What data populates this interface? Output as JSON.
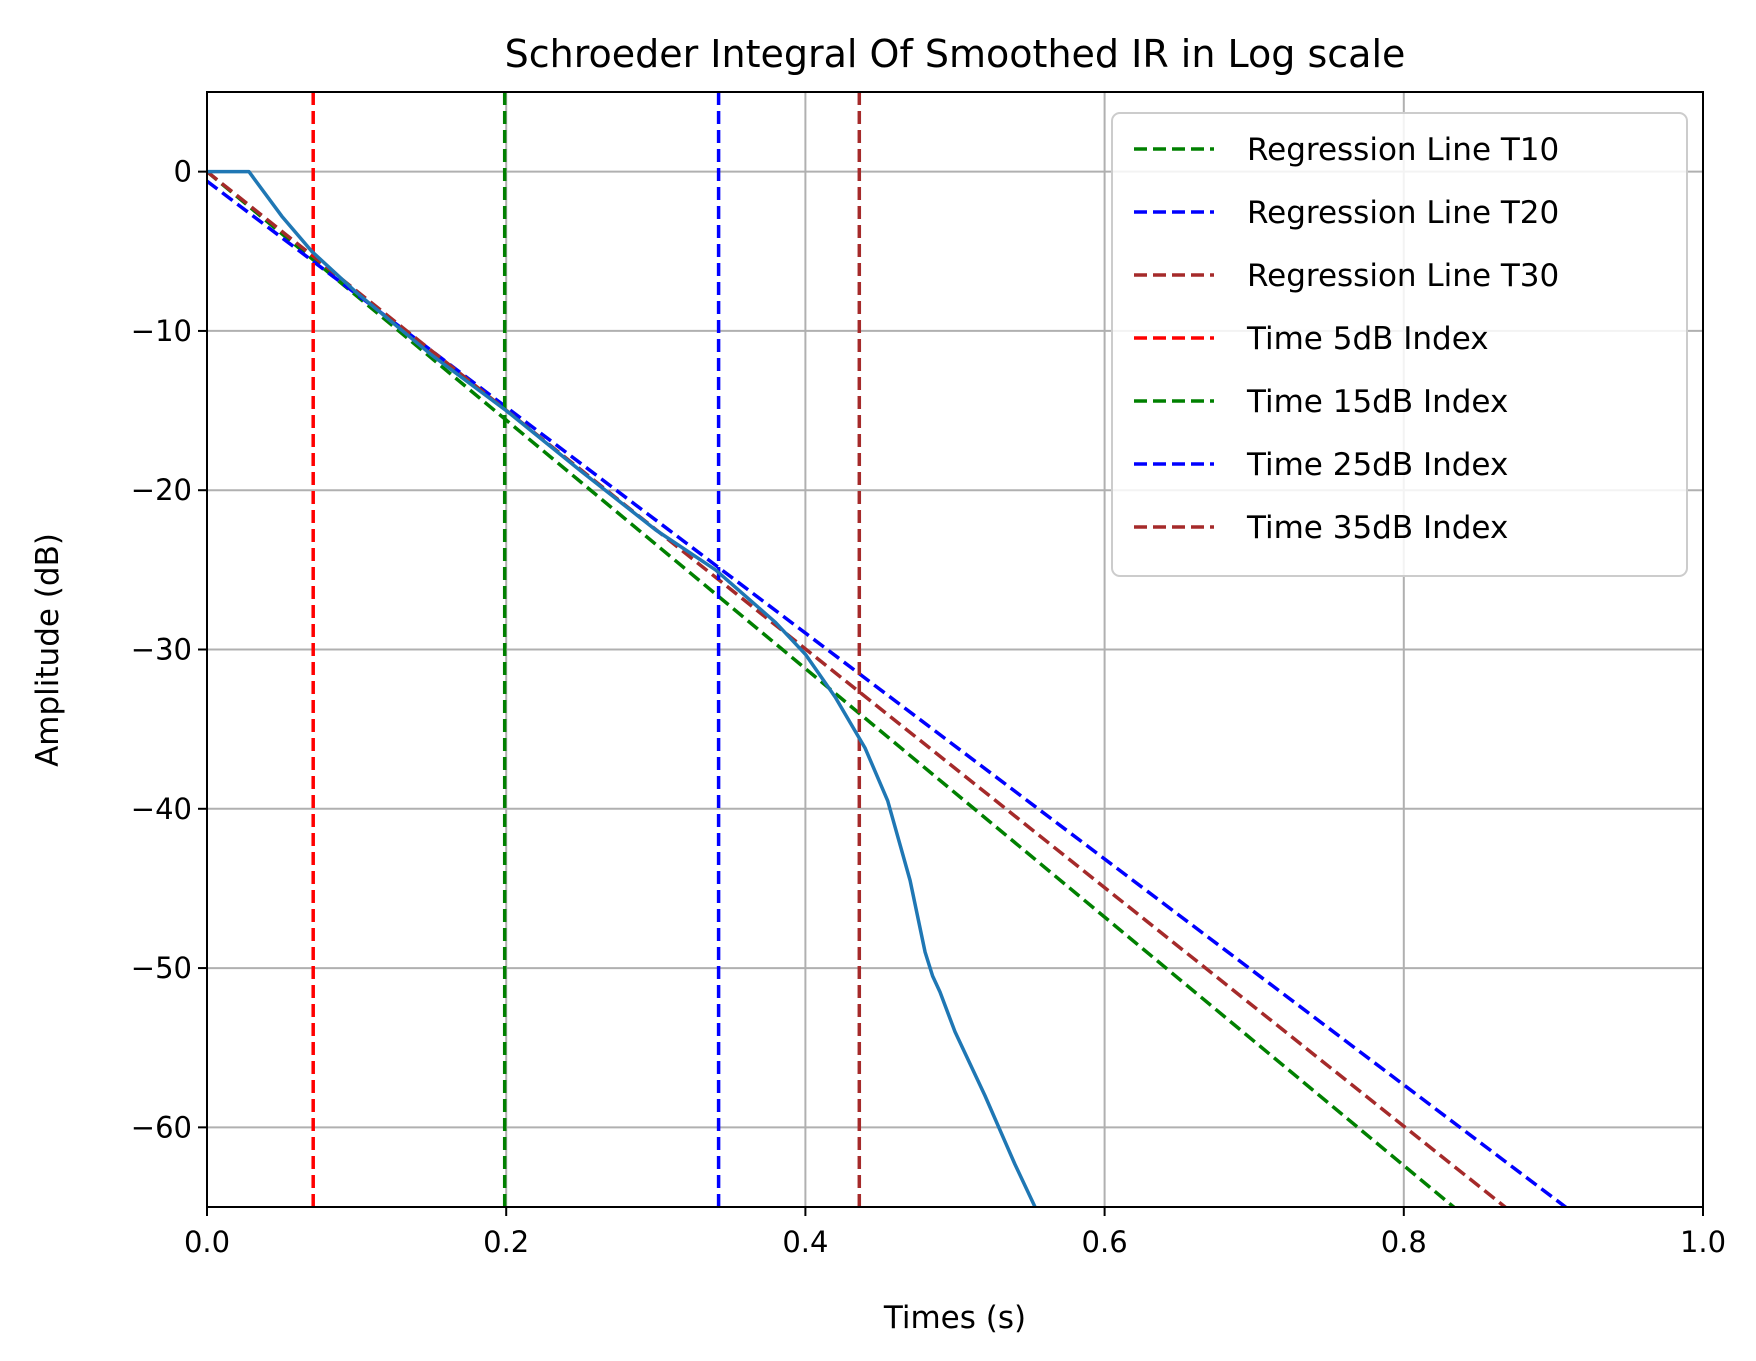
{
  "chart_data": {
    "type": "line",
    "title": "Schroeder Integral Of Smoothed IR in Log scale",
    "xlabel": "Times (s)",
    "ylabel": "Amplitude (dB)",
    "xlim": [
      0.0,
      1.0
    ],
    "ylim": [
      -65,
      5
    ],
    "xticks": [
      {
        "value": 0.0,
        "label": "0.0"
      },
      {
        "value": 0.2,
        "label": "0.2"
      },
      {
        "value": 0.4,
        "label": "0.4"
      },
      {
        "value": 0.6,
        "label": "0.6"
      },
      {
        "value": 0.8,
        "label": "0.8"
      },
      {
        "value": 1.0,
        "label": "1.0"
      }
    ],
    "yticks": [
      {
        "value": 0,
        "label": "0"
      },
      {
        "value": -10,
        "label": "−10"
      },
      {
        "value": -20,
        "label": "−20"
      },
      {
        "value": -30,
        "label": "−30"
      },
      {
        "value": -40,
        "label": "−40"
      },
      {
        "value": -50,
        "label": "−50"
      },
      {
        "value": -60,
        "label": "−60"
      }
    ],
    "grid": true,
    "legend_position": "top-right",
    "schroeder_curve": {
      "color": "#1f77b4",
      "x": [
        0.0,
        0.028,
        0.05,
        0.07,
        0.1,
        0.15,
        0.2,
        0.25,
        0.3,
        0.34,
        0.38,
        0.4,
        0.42,
        0.44,
        0.455,
        0.47,
        0.48,
        0.485,
        0.49,
        0.5,
        0.52,
        0.54,
        0.555
      ],
      "y": [
        0.0,
        0.0,
        -2.8,
        -5.0,
        -7.6,
        -11.5,
        -15.0,
        -18.8,
        -22.5,
        -25.0,
        -28.3,
        -30.3,
        -33.0,
        -36.2,
        -39.5,
        -44.5,
        -49.0,
        -50.5,
        -51.5,
        -54.0,
        -58.0,
        -62.3,
        -65.3
      ]
    },
    "series": [
      {
        "name": "Regression Line T10",
        "color": "#008000",
        "x": [
          0.0,
          0.85
        ],
        "y": [
          0.0,
          -66.3
        ]
      },
      {
        "name": "Regression Line T20",
        "color": "#0000ff",
        "x": [
          0.0,
          0.925
        ],
        "y": [
          -0.6,
          -66.2
        ]
      },
      {
        "name": "Regression Line T30",
        "color": "#a52a2a",
        "x": [
          0.0,
          0.885
        ],
        "y": [
          0.0,
          -66.3
        ]
      },
      {
        "name": "Time 5dB Index",
        "color": "#ff0000",
        "x": [
          0.071,
          0.071
        ],
        "y": [
          -65,
          5
        ]
      },
      {
        "name": "Time 15dB Index",
        "color": "#008000",
        "x": [
          0.199,
          0.199
        ],
        "y": [
          -65,
          5
        ]
      },
      {
        "name": "Time 25dB Index",
        "color": "#0000ff",
        "x": [
          0.342,
          0.342
        ],
        "y": [
          -65,
          5
        ]
      },
      {
        "name": "Time 35dB Index",
        "color": "#a52a2a",
        "x": [
          0.436,
          0.436
        ],
        "y": [
          -65,
          5
        ]
      }
    ]
  }
}
